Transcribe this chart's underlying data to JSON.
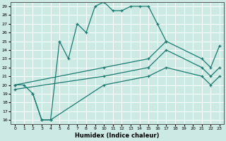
{
  "xlabel": "Humidex (Indice chaleur)",
  "bg_color": "#cce9e4",
  "line_color": "#1a7a6e",
  "grid_color": "#ffffff",
  "xlim": [
    -0.5,
    23.5
  ],
  "ylim": [
    15.5,
    29.5
  ],
  "xticks": [
    0,
    1,
    2,
    3,
    4,
    5,
    6,
    7,
    8,
    9,
    10,
    11,
    12,
    13,
    14,
    15,
    16,
    17,
    18,
    19,
    20,
    21,
    22,
    23
  ],
  "yticks": [
    16,
    17,
    18,
    19,
    20,
    21,
    22,
    23,
    24,
    25,
    26,
    27,
    28,
    29
  ],
  "curves": [
    {
      "x": [
        0,
        1,
        2,
        3,
        4,
        5,
        6,
        7,
        8,
        9,
        10,
        11,
        12,
        13,
        14,
        15,
        16,
        17
      ],
      "y": [
        20,
        20,
        19,
        16,
        16,
        25,
        23,
        27,
        26,
        29,
        29.5,
        28.5,
        28.5,
        29,
        29,
        29,
        27,
        25
      ]
    },
    {
      "x": [
        0,
        10,
        15,
        17,
        21,
        22,
        23
      ],
      "y": [
        20,
        22,
        23,
        25,
        23,
        22,
        24.5
      ]
    },
    {
      "x": [
        0,
        10,
        15,
        17,
        21,
        22,
        23
      ],
      "y": [
        19.5,
        21,
        22,
        24,
        22,
        21,
        22
      ]
    },
    {
      "x": [
        2,
        3,
        4,
        10,
        15,
        17,
        21,
        22,
        23
      ],
      "y": [
        19,
        16,
        16,
        20,
        21,
        22,
        21,
        20,
        21
      ]
    }
  ]
}
